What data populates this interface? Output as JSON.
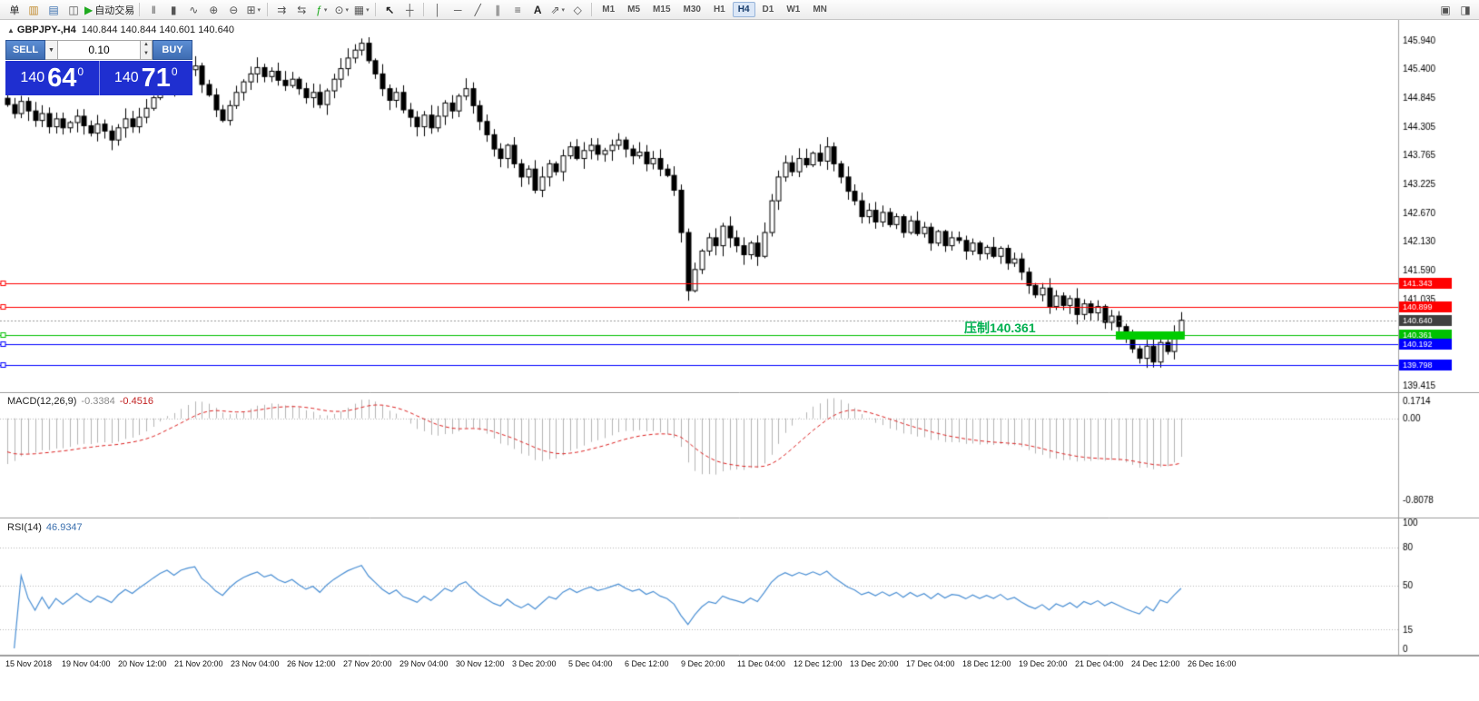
{
  "toolbar": {
    "new_order": "单",
    "autotrading": "自动交易",
    "timeframes": [
      "M1",
      "M5",
      "M15",
      "M30",
      "H1",
      "H4",
      "D1",
      "W1",
      "MN"
    ],
    "active_timeframe": "H4",
    "icons": {
      "chart_window": "▥",
      "market_watch": "▤",
      "navigator": "◫",
      "play": "▶",
      "bars": "‖",
      "candles": "▮",
      "line": "∿",
      "zoom_in": "⊕",
      "zoom_out": "⊖",
      "tile": "⊞",
      "autoscroll": "⇉",
      "shift": "⇆",
      "indicators": "ƒ",
      "periods": "⊙",
      "templates": "▦",
      "cursor": "↖",
      "crosshair": "┼",
      "vline": "│",
      "hline": "─",
      "trendline": "╱",
      "channel": "∥",
      "fibo": "≡",
      "text_tool": "A",
      "arrows": "⇗",
      "shapes": "◇",
      "caret": "▾",
      "dd": "▼",
      "spin_up": "▲",
      "spin_down": "▼",
      "win1": "▣",
      "win2": "◨"
    }
  },
  "trade_panel": {
    "sell": "SELL",
    "buy": "BUY",
    "volume": "0.10",
    "bid": {
      "big": "140",
      "pips": "64",
      "sup": "0"
    },
    "ask": {
      "big": "140",
      "pips": "71",
      "sup": "0"
    }
  },
  "chart": {
    "marker": "▲",
    "symbol_period": "GBPJPY-,H4",
    "ohlc": "140.844 140.844 140.601 140.640",
    "annotation": "压制140.361"
  },
  "chart_data": {
    "type": "candlestick",
    "title": "GBPJPY-,H4",
    "ylim": [
      139.33,
      146.32
    ],
    "y_ticks": [
      "145.940",
      "145.400",
      "144.845",
      "144.305",
      "143.765",
      "143.225",
      "142.670",
      "142.130",
      "141.590",
      "141.035",
      "139.415"
    ],
    "x_labels": [
      "15 Nov 2018",
      "19 Nov 04:00",
      "20 Nov 12:00",
      "21 Nov 20:00",
      "23 Nov 04:00",
      "26 Nov 12:00",
      "27 Nov 20:00",
      "29 Nov 04:00",
      "30 Nov 12:00",
      "3 Dec 20:00",
      "5 Dec 04:00",
      "6 Dec 12:00",
      "9 Dec 20:00",
      "11 Dec 04:00",
      "12 Dec 12:00",
      "13 Dec 20:00",
      "17 Dec 04:00",
      "18 Dec 12:00",
      "19 Dec 20:00",
      "21 Dec 04:00",
      "24 Dec 12:00",
      "26 Dec 16:00"
    ],
    "closes": [
      144.72,
      144.55,
      144.78,
      144.6,
      144.42,
      144.55,
      144.3,
      144.45,
      144.28,
      144.38,
      144.5,
      144.32,
      144.18,
      144.35,
      144.22,
      144.05,
      144.28,
      144.45,
      144.3,
      144.48,
      144.65,
      144.85,
      145.05,
      145.2,
      145.05,
      145.28,
      145.38,
      145.45,
      145.1,
      144.9,
      144.62,
      144.42,
      144.7,
      144.95,
      145.15,
      145.3,
      145.42,
      145.25,
      145.35,
      145.18,
      145.08,
      145.2,
      145.02,
      144.85,
      144.95,
      144.72,
      144.98,
      145.2,
      145.4,
      145.6,
      145.75,
      145.88,
      145.55,
      145.3,
      145.02,
      144.8,
      144.95,
      144.62,
      144.48,
      144.3,
      144.52,
      144.28,
      144.5,
      144.75,
      144.6,
      144.88,
      145.02,
      144.7,
      144.4,
      144.15,
      143.88,
      143.7,
      143.95,
      143.6,
      143.35,
      143.5,
      143.1,
      143.35,
      143.6,
      143.45,
      143.75,
      143.92,
      143.7,
      143.85,
      143.95,
      143.78,
      143.85,
      143.95,
      144.05,
      143.88,
      143.75,
      143.82,
      143.6,
      143.7,
      143.5,
      143.38,
      143.1,
      142.3,
      141.2,
      141.6,
      141.95,
      142.2,
      142.05,
      142.42,
      142.2,
      142.05,
      141.88,
      142.1,
      141.85,
      142.3,
      142.9,
      143.35,
      143.62,
      143.45,
      143.7,
      143.58,
      143.8,
      143.65,
      143.92,
      143.6,
      143.35,
      143.08,
      142.9,
      142.6,
      142.72,
      142.5,
      142.68,
      142.45,
      142.6,
      142.3,
      142.52,
      142.28,
      142.4,
      142.1,
      142.32,
      142.05,
      142.2,
      142.15,
      141.95,
      142.1,
      141.9,
      142.02,
      141.85,
      142.0,
      141.72,
      141.8,
      141.55,
      141.3,
      141.12,
      141.25,
      140.9,
      141.1,
      140.92,
      141.05,
      140.75,
      140.95,
      140.78,
      140.9,
      140.6,
      140.72,
      140.52,
      140.3,
      140.1,
      139.92,
      140.15,
      139.85,
      140.22,
      140.05,
      140.35,
      140.64
    ],
    "hlines": [
      {
        "price": 141.343,
        "label": "141.343",
        "color": "#FF0000"
      },
      {
        "price": 140.899,
        "label": "140.899",
        "color": "#FF0000"
      },
      {
        "price": 140.361,
        "label": "140.361",
        "color": "#00C000"
      },
      {
        "price": 140.192,
        "label": "140.192",
        "color": "#0000FF"
      },
      {
        "price": 139.798,
        "label": "139.798",
        "color": "#0000FF"
      }
    ],
    "current": {
      "price": 140.64,
      "label": "140.640",
      "color": "#404040"
    },
    "green_box": {
      "price": 140.361,
      "start_index": 160,
      "end_index": 169,
      "color": "#00CC00"
    },
    "macd": {
      "name": "MACD(12,26,9)",
      "values_text": [
        "-0.3384",
        "-0.4516"
      ],
      "fast": 12,
      "slow": 26,
      "signal": 9,
      "ylim": [
        -0.8078,
        0.1714
      ],
      "y_ticks": [
        "0.1714",
        "0.00",
        "-0.8078"
      ]
    },
    "rsi": {
      "name": "RSI(14)",
      "value_text": "46.9347",
      "period": 14,
      "levels": [
        80,
        50,
        15
      ],
      "y_ticks": [
        "100",
        "80",
        "50",
        "15",
        "0"
      ],
      "ylim": [
        0,
        100
      ]
    }
  }
}
